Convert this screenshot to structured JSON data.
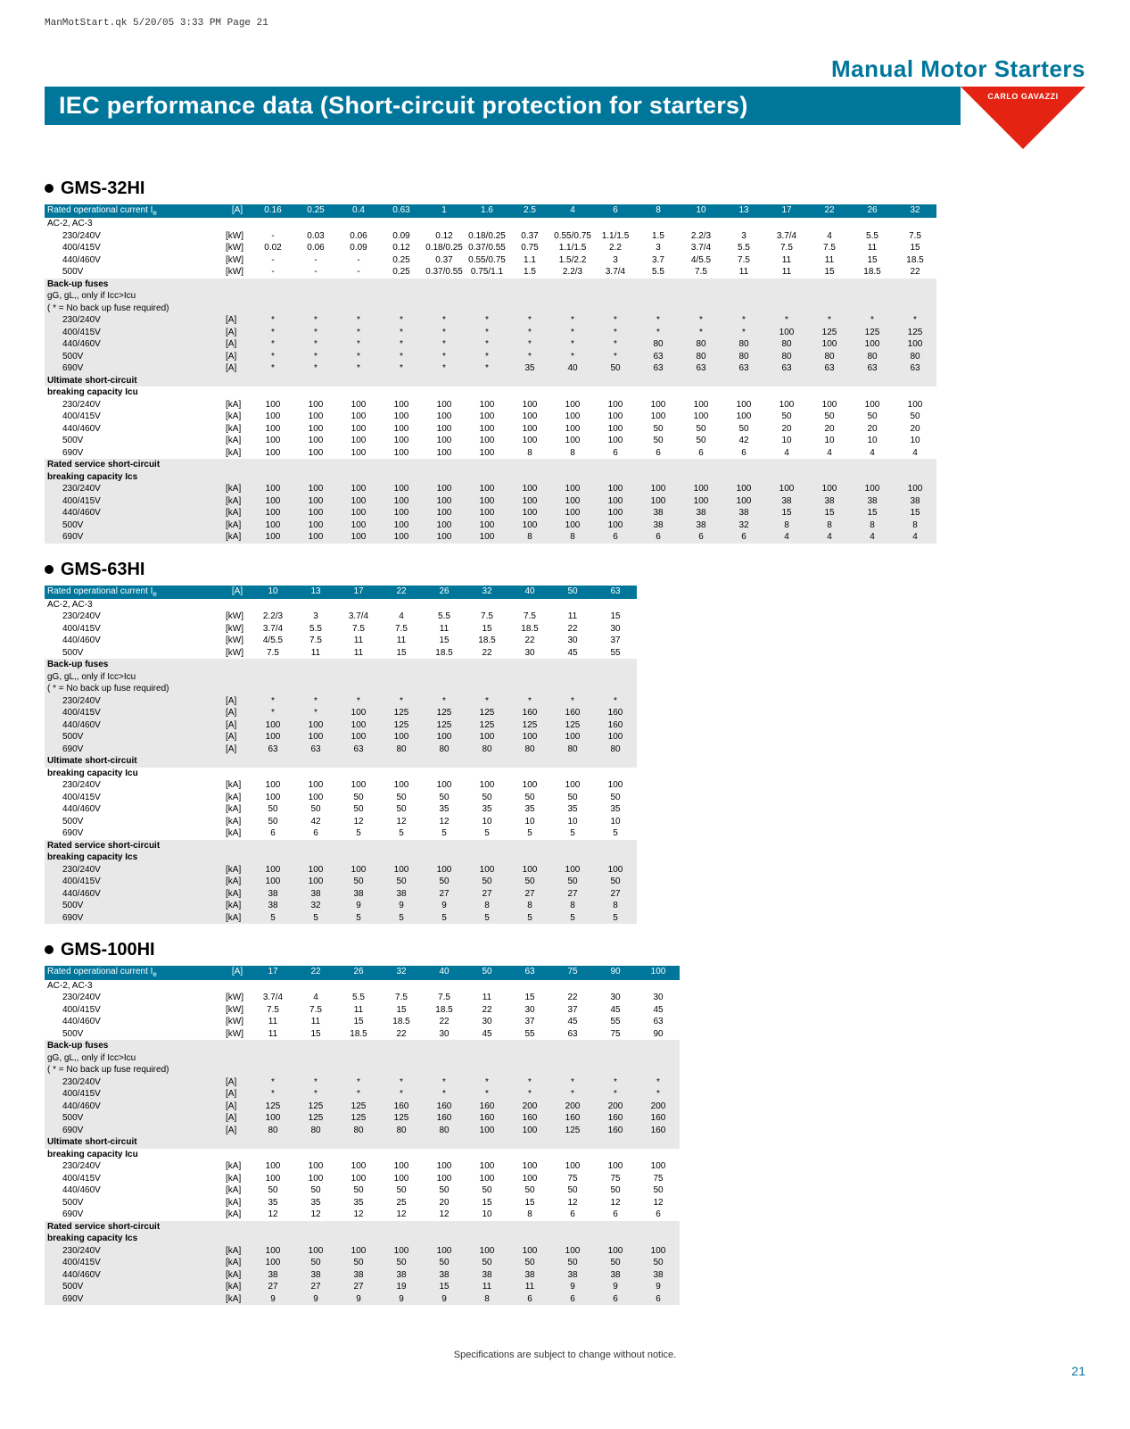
{
  "meta": "ManMotStart.qk  5/20/05  3:33 PM  Page 21",
  "top_title": "Manual Motor Starters",
  "banner_title": "IEC performance data (Short-circuit protection for starters)",
  "logo": "CARLO GAVAZZI",
  "footer": "Specifications are subject to change without notice.",
  "page_num": "21",
  "shared": {
    "header_label": "Rated operational current I",
    "header_unit": "[A]",
    "ac_label": "AC-2, AC-3",
    "voltages": [
      "230/240V",
      "400/415V",
      "440/460V",
      "500V",
      "690V"
    ],
    "kw_units": [
      "[kW]",
      "[kW]",
      "[kW]",
      "[kW]"
    ],
    "fuse_units": [
      "[A]",
      "[A]",
      "[A]",
      "[A]",
      "[A]"
    ],
    "ka_units": [
      "[kA]",
      "[kA]",
      "[kA]",
      "[kA]",
      "[kA]"
    ],
    "section_backup": "Back-up fuses",
    "backup_note1": "gG, gL,, only if Icc>Icu",
    "backup_note2": "( * = No back up fuse required)",
    "section_ultimate": "Ultimate short-circuit",
    "ultimate_sub": "breaking capacity  Icu",
    "section_rated": "Rated service short-circuit",
    "rated_sub": "breaking capacity  Ics"
  },
  "gms32": {
    "title": "GMS-32HI",
    "cols": [
      "0.16",
      "0.25",
      "0.4",
      "0.63",
      "1",
      "1.6",
      "2.5",
      "4",
      "6",
      "8",
      "10",
      "13",
      "17",
      "22",
      "26",
      "32"
    ],
    "ac": [
      [
        "-",
        "0.03",
        "0.06",
        "0.09",
        "0.12",
        "0.18/0.25",
        "0.37",
        "0.55/0.75",
        "1.1/1.5",
        "1.5",
        "2.2/3",
        "3",
        "3.7/4",
        "4",
        "5.5",
        "7.5"
      ],
      [
        "0.02",
        "0.06",
        "0.09",
        "0.12",
        "0.18/0.25",
        "0.37/0.55",
        "0.75",
        "1.1/1.5",
        "2.2",
        "3",
        "3.7/4",
        "5.5",
        "7.5",
        "7.5",
        "11",
        "15"
      ],
      [
        "-",
        "-",
        "-",
        "0.25",
        "0.37",
        "0.55/0.75",
        "1.1",
        "1.5/2.2",
        "3",
        "3.7",
        "4/5.5",
        "7.5",
        "11",
        "11",
        "15",
        "18.5"
      ],
      [
        "-",
        "-",
        "-",
        "0.25",
        "0.37/0.55",
        "0.75/1.1",
        "1.5",
        "2.2/3",
        "3.7/4",
        "5.5",
        "7.5",
        "11",
        "11",
        "15",
        "18.5",
        "22"
      ]
    ],
    "backup": [
      [
        "*",
        "*",
        "*",
        "*",
        "*",
        "*",
        "*",
        "*",
        "*",
        "*",
        "*",
        "*",
        "*",
        "*",
        "*",
        "*"
      ],
      [
        "*",
        "*",
        "*",
        "*",
        "*",
        "*",
        "*",
        "*",
        "*",
        "*",
        "*",
        "*",
        "100",
        "125",
        "125",
        "125"
      ],
      [
        "*",
        "*",
        "*",
        "*",
        "*",
        "*",
        "*",
        "*",
        "*",
        "80",
        "80",
        "80",
        "80",
        "100",
        "100",
        "100"
      ],
      [
        "*",
        "*",
        "*",
        "*",
        "*",
        "*",
        "*",
        "*",
        "*",
        "63",
        "80",
        "80",
        "80",
        "80",
        "80",
        "80"
      ],
      [
        "*",
        "*",
        "*",
        "*",
        "*",
        "*",
        "35",
        "40",
        "50",
        "63",
        "63",
        "63",
        "63",
        "63",
        "63",
        "63"
      ]
    ],
    "ultimate": [
      [
        "100",
        "100",
        "100",
        "100",
        "100",
        "100",
        "100",
        "100",
        "100",
        "100",
        "100",
        "100",
        "100",
        "100",
        "100",
        "100"
      ],
      [
        "100",
        "100",
        "100",
        "100",
        "100",
        "100",
        "100",
        "100",
        "100",
        "100",
        "100",
        "100",
        "50",
        "50",
        "50",
        "50"
      ],
      [
        "100",
        "100",
        "100",
        "100",
        "100",
        "100",
        "100",
        "100",
        "100",
        "50",
        "50",
        "50",
        "20",
        "20",
        "20",
        "20"
      ],
      [
        "100",
        "100",
        "100",
        "100",
        "100",
        "100",
        "100",
        "100",
        "100",
        "50",
        "50",
        "42",
        "10",
        "10",
        "10",
        "10"
      ],
      [
        "100",
        "100",
        "100",
        "100",
        "100",
        "100",
        "8",
        "8",
        "6",
        "6",
        "6",
        "6",
        "4",
        "4",
        "4",
        "4"
      ]
    ],
    "rated": [
      [
        "100",
        "100",
        "100",
        "100",
        "100",
        "100",
        "100",
        "100",
        "100",
        "100",
        "100",
        "100",
        "100",
        "100",
        "100",
        "100"
      ],
      [
        "100",
        "100",
        "100",
        "100",
        "100",
        "100",
        "100",
        "100",
        "100",
        "100",
        "100",
        "100",
        "38",
        "38",
        "38",
        "38"
      ],
      [
        "100",
        "100",
        "100",
        "100",
        "100",
        "100",
        "100",
        "100",
        "100",
        "38",
        "38",
        "38",
        "15",
        "15",
        "15",
        "15"
      ],
      [
        "100",
        "100",
        "100",
        "100",
        "100",
        "100",
        "100",
        "100",
        "100",
        "38",
        "38",
        "32",
        "8",
        "8",
        "8",
        "8"
      ],
      [
        "100",
        "100",
        "100",
        "100",
        "100",
        "100",
        "8",
        "8",
        "6",
        "6",
        "6",
        "6",
        "4",
        "4",
        "4",
        "4"
      ]
    ]
  },
  "gms63": {
    "title": "GMS-63HI",
    "cols": [
      "10",
      "13",
      "17",
      "22",
      "26",
      "32",
      "40",
      "50",
      "63"
    ],
    "ac": [
      [
        "2.2/3",
        "3",
        "3.7/4",
        "4",
        "5.5",
        "7.5",
        "7.5",
        "11",
        "15"
      ],
      [
        "3.7/4",
        "5.5",
        "7.5",
        "7.5",
        "11",
        "15",
        "18.5",
        "22",
        "30"
      ],
      [
        "4/5.5",
        "7.5",
        "11",
        "11",
        "15",
        "18.5",
        "22",
        "30",
        "37"
      ],
      [
        "7.5",
        "11",
        "11",
        "15",
        "18.5",
        "22",
        "30",
        "45",
        "55"
      ]
    ],
    "backup": [
      [
        "*",
        "*",
        "*",
        "*",
        "*",
        "*",
        "*",
        "*",
        "*"
      ],
      [
        "*",
        "*",
        "100",
        "125",
        "125",
        "125",
        "160",
        "160",
        "160"
      ],
      [
        "100",
        "100",
        "100",
        "125",
        "125",
        "125",
        "125",
        "125",
        "160"
      ],
      [
        "100",
        "100",
        "100",
        "100",
        "100",
        "100",
        "100",
        "100",
        "100"
      ],
      [
        "63",
        "63",
        "63",
        "80",
        "80",
        "80",
        "80",
        "80",
        "80"
      ]
    ],
    "ultimate": [
      [
        "100",
        "100",
        "100",
        "100",
        "100",
        "100",
        "100",
        "100",
        "100"
      ],
      [
        "100",
        "100",
        "50",
        "50",
        "50",
        "50",
        "50",
        "50",
        "50"
      ],
      [
        "50",
        "50",
        "50",
        "50",
        "35",
        "35",
        "35",
        "35",
        "35"
      ],
      [
        "50",
        "42",
        "12",
        "12",
        "12",
        "10",
        "10",
        "10",
        "10"
      ],
      [
        "6",
        "6",
        "5",
        "5",
        "5",
        "5",
        "5",
        "5",
        "5"
      ]
    ],
    "rated": [
      [
        "100",
        "100",
        "100",
        "100",
        "100",
        "100",
        "100",
        "100",
        "100"
      ],
      [
        "100",
        "100",
        "50",
        "50",
        "50",
        "50",
        "50",
        "50",
        "50"
      ],
      [
        "38",
        "38",
        "38",
        "38",
        "27",
        "27",
        "27",
        "27",
        "27"
      ],
      [
        "38",
        "32",
        "9",
        "9",
        "9",
        "8",
        "8",
        "8",
        "8"
      ],
      [
        "5",
        "5",
        "5",
        "5",
        "5",
        "5",
        "5",
        "5",
        "5"
      ]
    ]
  },
  "gms100": {
    "title": "GMS-100HI",
    "cols": [
      "17",
      "22",
      "26",
      "32",
      "40",
      "50",
      "63",
      "75",
      "90",
      "100"
    ],
    "ac": [
      [
        "3.7/4",
        "4",
        "5.5",
        "7.5",
        "7.5",
        "11",
        "15",
        "22",
        "30",
        "30"
      ],
      [
        "7.5",
        "7.5",
        "11",
        "15",
        "18.5",
        "22",
        "30",
        "37",
        "45",
        "45"
      ],
      [
        "11",
        "11",
        "15",
        "18.5",
        "22",
        "30",
        "37",
        "45",
        "55",
        "63"
      ],
      [
        "11",
        "15",
        "18.5",
        "22",
        "30",
        "45",
        "55",
        "63",
        "75",
        "90"
      ]
    ],
    "backup": [
      [
        "*",
        "*",
        "*",
        "*",
        "*",
        "*",
        "*",
        "*",
        "*",
        "*"
      ],
      [
        "*",
        "*",
        "*",
        "*",
        "*",
        "*",
        "*",
        "*",
        "*",
        "*"
      ],
      [
        "125",
        "125",
        "125",
        "160",
        "160",
        "160",
        "200",
        "200",
        "200",
        "200"
      ],
      [
        "100",
        "125",
        "125",
        "125",
        "160",
        "160",
        "160",
        "160",
        "160",
        "160"
      ],
      [
        "80",
        "80",
        "80",
        "80",
        "80",
        "100",
        "100",
        "125",
        "160",
        "160"
      ]
    ],
    "ultimate": [
      [
        "100",
        "100",
        "100",
        "100",
        "100",
        "100",
        "100",
        "100",
        "100",
        "100"
      ],
      [
        "100",
        "100",
        "100",
        "100",
        "100",
        "100",
        "100",
        "75",
        "75",
        "75"
      ],
      [
        "50",
        "50",
        "50",
        "50",
        "50",
        "50",
        "50",
        "50",
        "50",
        "50"
      ],
      [
        "35",
        "35",
        "35",
        "25",
        "20",
        "15",
        "15",
        "12",
        "12",
        "12"
      ],
      [
        "12",
        "12",
        "12",
        "12",
        "12",
        "10",
        "8",
        "6",
        "6",
        "6"
      ]
    ],
    "rated": [
      [
        "100",
        "100",
        "100",
        "100",
        "100",
        "100",
        "100",
        "100",
        "100",
        "100"
      ],
      [
        "100",
        "50",
        "50",
        "50",
        "50",
        "50",
        "50",
        "50",
        "50",
        "50"
      ],
      [
        "38",
        "38",
        "38",
        "38",
        "38",
        "38",
        "38",
        "38",
        "38",
        "38"
      ],
      [
        "27",
        "27",
        "27",
        "19",
        "15",
        "11",
        "11",
        "9",
        "9",
        "9"
      ],
      [
        "9",
        "9",
        "9",
        "9",
        "9",
        "8",
        "6",
        "6",
        "6",
        "6"
      ]
    ]
  }
}
